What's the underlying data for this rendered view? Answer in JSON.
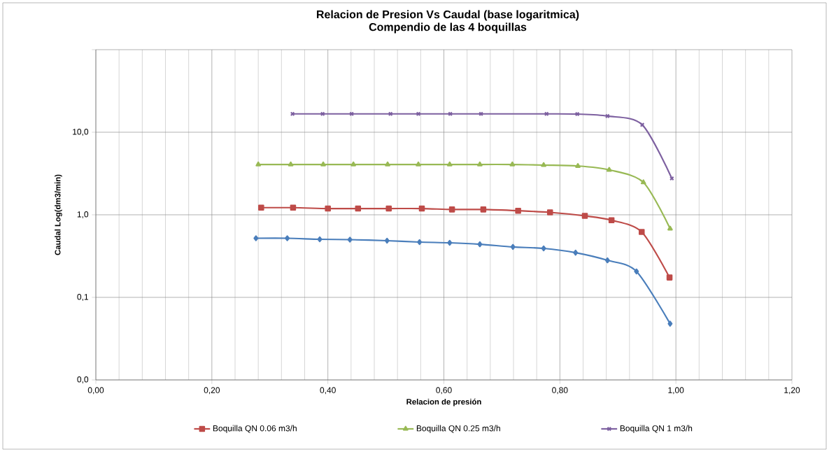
{
  "chart_data": {
    "type": "line",
    "title": "Relacion de Presion Vs Caudal (base logaritmica)",
    "subtitle": "Compendio de las 4 boquillas",
    "xlabel": "Relacion de presión",
    "ylabel": "Caudal Log(dm3/min)",
    "log": "y",
    "grid": true,
    "legend": "bottom",
    "xlim": [
      0,
      1.2
    ],
    "ylim": [
      0.01,
      100
    ],
    "xticks": [
      {
        "value": 0,
        "label": "0,00"
      },
      {
        "value": 0.2,
        "label": "0,20"
      },
      {
        "value": 0.4,
        "label": "0,40"
      },
      {
        "value": 0.6,
        "label": "0,60"
      },
      {
        "value": 0.8,
        "label": "0,80"
      },
      {
        "value": 1.0,
        "label": "1,00"
      },
      {
        "value": 1.2,
        "label": "1,20"
      }
    ],
    "yticks": [
      {
        "value": 0.01,
        "label": "0,0"
      },
      {
        "value": 0.1,
        "label": "0,1"
      },
      {
        "value": 1,
        "label": "1,0"
      },
      {
        "value": 10,
        "label": "10,0"
      },
      {
        "value": 100,
        "label": null
      }
    ],
    "series": [
      {
        "color": "#4a7ebb",
        "marker": "diamond",
        "x": [
          0.276,
          0.33,
          0.386,
          0.438,
          0.502,
          0.558,
          0.61,
          0.662,
          0.719,
          0.772,
          0.827,
          0.882,
          0.932,
          0.99
        ],
        "values": [
          0.52,
          0.52,
          0.505,
          0.5,
          0.486,
          0.467,
          0.458,
          0.44,
          0.408,
          0.392,
          0.348,
          0.281,
          0.206,
          0.048
        ]
      },
      {
        "name": "Boquilla QN 0.06 m3/h",
        "color": "#be4b48",
        "marker": "square",
        "x": [
          0.285,
          0.34,
          0.4,
          0.452,
          0.505,
          0.562,
          0.614,
          0.668,
          0.728,
          0.783,
          0.843,
          0.889,
          0.941,
          0.989
        ],
        "values": [
          1.22,
          1.22,
          1.19,
          1.19,
          1.19,
          1.19,
          1.16,
          1.16,
          1.12,
          1.07,
          0.97,
          0.86,
          0.62,
          0.174
        ]
      },
      {
        "name": "Boquilla QN 0.25 m3/h",
        "color": "#98b954",
        "marker": "triangle",
        "x": [
          0.28,
          0.336,
          0.392,
          0.444,
          0.503,
          0.556,
          0.61,
          0.662,
          0.718,
          0.772,
          0.831,
          0.885,
          0.944,
          0.99
        ],
        "values": [
          4.07,
          4.07,
          4.07,
          4.07,
          4.07,
          4.07,
          4.07,
          4.07,
          4.07,
          4.0,
          3.9,
          3.5,
          2.47,
          0.68
        ]
      },
      {
        "name": "Boquilla QN 1 m3/h",
        "color": "#7d60a0",
        "marker": "cross",
        "x": [
          0.339,
          0.391,
          0.441,
          0.508,
          0.556,
          0.611,
          0.664,
          0.777,
          0.83,
          0.882,
          0.942,
          0.993
        ],
        "values": [
          16.7,
          16.7,
          16.7,
          16.7,
          16.7,
          16.7,
          16.7,
          16.7,
          16.6,
          15.7,
          12.3,
          2.76
        ]
      }
    ]
  }
}
